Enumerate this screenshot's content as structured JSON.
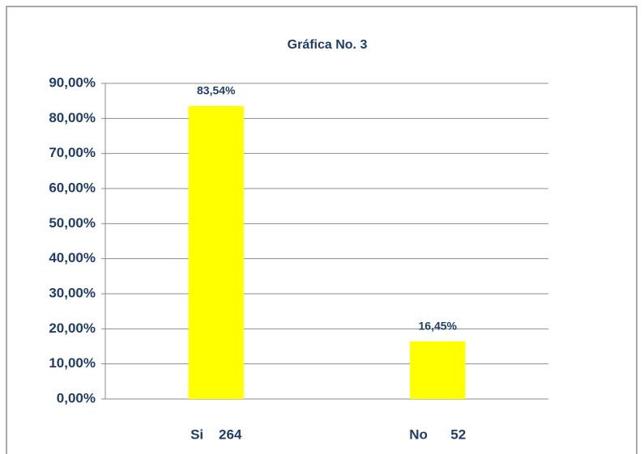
{
  "chart_data": {
    "type": "bar",
    "title": "Gráfica No. 3",
    "categories": [
      "Si    264",
      "No      52"
    ],
    "values": [
      83.54,
      16.45
    ],
    "value_labels": [
      "83,54%",
      "16,45%"
    ],
    "color": "#ffff00",
    "ylim": [
      0,
      90
    ],
    "yticks": [
      {
        "value": 0,
        "label": "0,00%"
      },
      {
        "value": 10,
        "label": "10,00%"
      },
      {
        "value": 20,
        "label": "20,00%"
      },
      {
        "value": 30,
        "label": "30,00%"
      },
      {
        "value": 40,
        "label": "40,00%"
      },
      {
        "value": 50,
        "label": "50,00%"
      },
      {
        "value": 60,
        "label": "60,00%"
      },
      {
        "value": 70,
        "label": "70,00%"
      },
      {
        "value": 80,
        "label": "80,00%"
      },
      {
        "value": 90,
        "label": "90,00%"
      }
    ],
    "grid": true
  }
}
